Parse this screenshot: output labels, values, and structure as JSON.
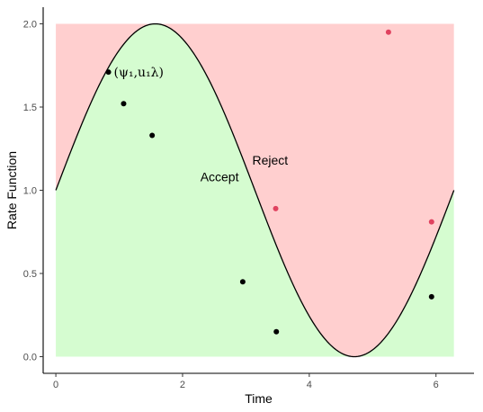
{
  "chart_data": {
    "type": "scatter",
    "title": "",
    "xlabel": "Time",
    "ylabel": "Rate Function",
    "xlim": [
      -0.2,
      6.6
    ],
    "ylim": [
      -0.1,
      2.1
    ],
    "x_ticks": [
      "0",
      "2",
      "4",
      "6"
    ],
    "y_ticks": [
      "0.0",
      "0.5",
      "1.0",
      "1.5",
      "2.0"
    ],
    "grid": false,
    "region_bounds": {
      "x_range": [
        0,
        6.283
      ],
      "y_max": 2.0
    },
    "rate_function": "1 + sin(t)",
    "regions": [
      {
        "label": "Accept",
        "color": "#d5fcd0"
      },
      {
        "label": "Reject",
        "color": "#ffcfcf"
      }
    ],
    "annotation": {
      "text": "(ψ₁,u₁λ)",
      "x": 0.83,
      "y": 1.71
    },
    "series": [
      {
        "color": "#000000",
        "points": [
          {
            "x": 0.83,
            "y": 1.71
          },
          {
            "x": 1.07,
            "y": 1.52
          },
          {
            "x": 1.52,
            "y": 1.33
          },
          {
            "x": 2.95,
            "y": 0.45
          },
          {
            "x": 3.48,
            "y": 0.15
          },
          {
            "x": 5.93,
            "y": 0.36
          }
        ]
      },
      {
        "color": "#e0425f",
        "points": [
          {
            "x": 3.47,
            "y": 0.89
          },
          {
            "x": 5.25,
            "y": 1.95
          },
          {
            "x": 5.93,
            "y": 0.81
          }
        ]
      }
    ]
  }
}
